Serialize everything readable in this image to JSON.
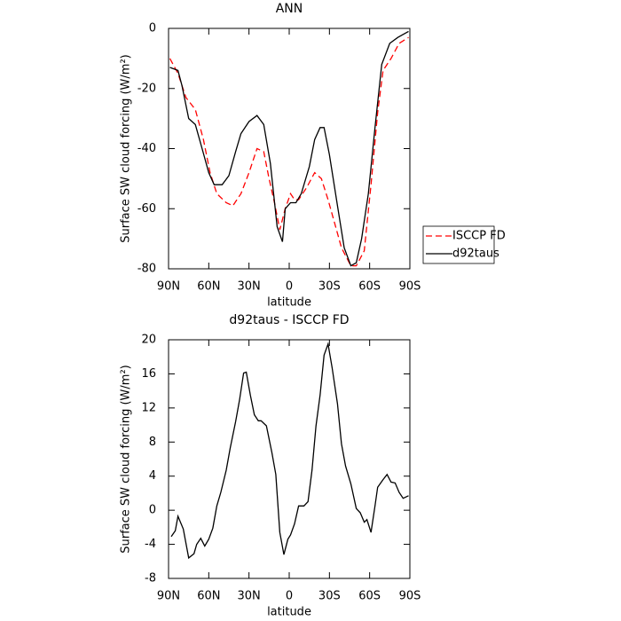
{
  "chart_data": [
    {
      "type": "line",
      "title": "ANN",
      "xlabel": "latitude",
      "ylabel": "Surface SW cloud forcing (W/m²)",
      "xlim": [
        90,
        -90
      ],
      "xticks": [
        {
          "value": 90,
          "label": "90N"
        },
        {
          "value": 60,
          "label": "60N"
        },
        {
          "value": 30,
          "label": "30N"
        },
        0,
        {
          "value": -30,
          "label": "30S"
        },
        {
          "value": -60,
          "label": "60S"
        },
        {
          "value": -90,
          "label": "90S"
        }
      ],
      "ylim": [
        -80,
        0
      ],
      "yticks": [
        -80,
        -60,
        -40,
        -20,
        0
      ],
      "legend": "right",
      "series": [
        {
          "name": "ISCCP FD",
          "color": "#ff0000",
          "dash": "dashed",
          "x": [
            89,
            83,
            77,
            70,
            64,
            59,
            54,
            47,
            42,
            36,
            30,
            24,
            19,
            15,
            11,
            7,
            3,
            -1,
            -4,
            -7,
            -13,
            -19,
            -24,
            -29,
            -34,
            -39,
            -46,
            -50,
            -56,
            -61,
            -66,
            -70,
            -76,
            -82,
            -89
          ],
          "values": [
            -10,
            -15,
            -23,
            -27,
            -37,
            -48,
            -55,
            -58,
            -59,
            -55,
            -48,
            -40,
            -41,
            -50,
            -58,
            -67,
            -60,
            -55,
            -57,
            -57,
            -53,
            -48,
            -50,
            -57,
            -65,
            -73,
            -79,
            -79,
            -74,
            -52,
            -28,
            -14,
            -10,
            -5,
            -3
          ]
        },
        {
          "name": "d92taus",
          "color": "#000000",
          "dash": "solid",
          "x": [
            89,
            83,
            80,
            75,
            70,
            65,
            60,
            56,
            50,
            45,
            40,
            36,
            30,
            24,
            19,
            14,
            9,
            5,
            3,
            -1,
            -5,
            -9,
            -15,
            -19,
            -23,
            -26,
            -30,
            -36,
            -41,
            -46,
            -50,
            -54,
            -59,
            -64,
            -69,
            -75,
            -81,
            -85,
            -89
          ],
          "values": [
            -13,
            -14,
            -19,
            -30,
            -32,
            -40,
            -48,
            -52,
            -52,
            -49,
            -41,
            -35,
            -31,
            -29,
            -32,
            -45,
            -66,
            -71,
            -60,
            -58,
            -58,
            -55,
            -46,
            -37,
            -33,
            -33,
            -42,
            -59,
            -73,
            -79,
            -78,
            -70,
            -55,
            -33,
            -12,
            -5,
            -3,
            -2,
            -1
          ]
        }
      ]
    },
    {
      "type": "line",
      "title": "d92taus - ISCCP FD",
      "xlabel": "latitude",
      "ylabel": "Surface SW cloud forcing (W/m²)",
      "xlim": [
        90,
        -90
      ],
      "xticks": [
        {
          "value": 90,
          "label": "90N"
        },
        {
          "value": 60,
          "label": "60N"
        },
        {
          "value": 30,
          "label": "30N"
        },
        0,
        {
          "value": -30,
          "label": "30S"
        },
        {
          "value": -60,
          "label": "60S"
        },
        {
          "value": -90,
          "label": "90S"
        }
      ],
      "ylim": [
        -8,
        20
      ],
      "yticks": [
        -8,
        -4,
        0,
        4,
        8,
        12,
        16,
        20
      ],
      "series": [
        {
          "color": "#000000",
          "dash": "solid",
          "x": [
            88,
            85,
            83,
            79,
            75,
            71,
            69,
            66,
            63,
            60,
            57,
            54,
            51,
            47,
            44,
            40,
            37,
            34,
            32,
            29,
            26,
            23,
            21,
            17,
            13,
            10,
            7,
            4,
            1,
            -1,
            -4,
            -7,
            -11,
            -14,
            -17,
            -20,
            -23,
            -26,
            -29,
            -32,
            -36,
            -39,
            -42,
            -46,
            -50,
            -53,
            -56,
            -58,
            -61,
            -64,
            -66,
            -70,
            -73,
            -76,
            -79,
            -82,
            -85,
            -89
          ],
          "values": [
            -3.1,
            -2.4,
            -0.7,
            -2.2,
            -5.6,
            -5.1,
            -4,
            -3.3,
            -4.2,
            -3.4,
            -2.1,
            0.5,
            2.1,
            4.7,
            7.3,
            10.4,
            13,
            16.1,
            16.2,
            13.5,
            11.2,
            10.5,
            10.5,
            9.9,
            6.8,
            4.2,
            -2.6,
            -5.2,
            -3.4,
            -2.9,
            -1.6,
            0.5,
            0.5,
            1,
            4.7,
            9.9,
            13.5,
            18.2,
            19.5,
            16.7,
            12.5,
            7.8,
            5.2,
            3.1,
            0.2,
            -0.3,
            -1.4,
            -1.1,
            -2.6,
            0.5,
            2.7,
            3.6,
            4.2,
            3.3,
            3.2,
            2.1,
            1.4,
            1.7
          ]
        }
      ]
    }
  ]
}
